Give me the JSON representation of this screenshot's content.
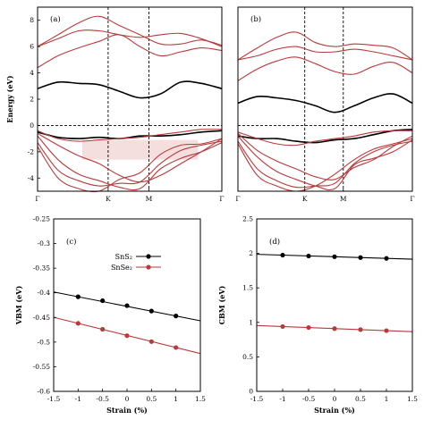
{
  "figure": {
    "colors": {
      "black_series": "#000000",
      "red_series": "#b83a3a",
      "conduction_fill": "#f5dede"
    }
  },
  "chart_data": [
    {
      "type": "line",
      "panel_label": "(a)",
      "ylabel": "Energy (eV)",
      "ylim": [
        -5,
        9
      ],
      "yticks": [
        "-4",
        "-2",
        "0",
        "2",
        "4",
        "6",
        "8"
      ],
      "xticks": [
        "Γ",
        "K",
        "M",
        "Γ"
      ],
      "fermi_level": 0,
      "series": [
        {
          "style": "red",
          "values": [
            6.0,
            6.9,
            7.8,
            8.3,
            7.6,
            6.9,
            6.2,
            6.2,
            6.5,
            6.1
          ]
        },
        {
          "style": "red",
          "values": [
            6.0,
            6.6,
            7.2,
            7.2,
            6.9,
            6.7,
            6.9,
            7.0,
            6.6,
            6.0
          ]
        },
        {
          "style": "red",
          "values": [
            4.4,
            5.3,
            5.9,
            6.4,
            6.9,
            6.0,
            5.3,
            5.6,
            5.9,
            5.7
          ]
        },
        {
          "style": "black",
          "values": [
            2.8,
            3.3,
            3.2,
            3.1,
            2.6,
            2.1,
            2.4,
            3.3,
            3.2,
            2.8
          ]
        },
        {
          "style": "black",
          "values": [
            -0.5,
            -0.9,
            -1.0,
            -0.9,
            -1.0,
            -0.8,
            -0.8,
            -0.7,
            -0.5,
            -0.4
          ]
        },
        {
          "style": "red",
          "values": [
            -0.4,
            -1.0,
            -1.2,
            -1.1,
            -1.0,
            -0.9,
            -0.7,
            -0.5,
            -0.3,
            -0.3
          ]
        },
        {
          "style": "red",
          "values": [
            -0.6,
            -1.5,
            -2.3,
            -2.9,
            -3.8,
            -4.3,
            -3.8,
            -2.9,
            -2.0,
            -1.0
          ]
        },
        {
          "style": "red",
          "values": [
            -0.8,
            -2.6,
            -3.7,
            -4.2,
            -4.7,
            -4.8,
            -3.3,
            -2.5,
            -2.0,
            -1.3
          ]
        },
        {
          "style": "red",
          "values": [
            -1.3,
            -3.4,
            -4.2,
            -4.6,
            -4.4,
            -4.3,
            -2.9,
            -1.9,
            -1.5,
            -1.2
          ]
        },
        {
          "style": "red",
          "values": [
            -1.6,
            -4.0,
            -4.8,
            -5.0,
            -4.1,
            -3.6,
            -2.2,
            -1.5,
            -1.4,
            -1.0
          ]
        }
      ]
    },
    {
      "type": "line",
      "panel_label": "(b)",
      "ylim": [
        -5,
        9
      ],
      "xticks": [
        "Γ",
        "K",
        "M",
        "Γ"
      ],
      "fermi_level": 0,
      "series": [
        {
          "style": "red",
          "values": [
            5.0,
            5.9,
            6.7,
            7.1,
            6.3,
            6.0,
            6.2,
            6.1,
            5.9,
            5.0
          ]
        },
        {
          "style": "red",
          "values": [
            5.0,
            5.3,
            5.8,
            6.0,
            5.6,
            5.6,
            5.8,
            5.6,
            5.3,
            5.0
          ]
        },
        {
          "style": "red",
          "values": [
            3.4,
            4.3,
            4.9,
            5.2,
            4.7,
            4.1,
            3.9,
            4.5,
            4.8,
            4.0
          ]
        },
        {
          "style": "black",
          "values": [
            1.7,
            2.2,
            2.1,
            1.9,
            1.5,
            1.0,
            1.5,
            2.1,
            2.4,
            1.7
          ]
        },
        {
          "style": "black",
          "values": [
            -0.8,
            -1.0,
            -1.0,
            -1.2,
            -1.3,
            -1.1,
            -1.0,
            -0.7,
            -0.4,
            -0.3
          ]
        },
        {
          "style": "red",
          "values": [
            -0.5,
            -1.0,
            -1.4,
            -1.5,
            -1.2,
            -1.0,
            -0.8,
            -0.5,
            -0.4,
            -0.4
          ]
        },
        {
          "style": "red",
          "values": [
            -0.6,
            -1.9,
            -2.7,
            -3.3,
            -3.9,
            -4.1,
            -3.2,
            -2.6,
            -1.6,
            -0.8
          ]
        },
        {
          "style": "red",
          "values": [
            -0.8,
            -2.4,
            -3.5,
            -4.1,
            -4.6,
            -4.8,
            -3.0,
            -2.5,
            -2.0,
            -1.1
          ]
        },
        {
          "style": "red",
          "values": [
            -1.2,
            -3.3,
            -4.2,
            -4.7,
            -4.6,
            -4.4,
            -2.9,
            -2.0,
            -1.5,
            -1.2
          ]
        },
        {
          "style": "red",
          "values": [
            -1.4,
            -3.8,
            -4.6,
            -5.0,
            -4.6,
            -3.7,
            -2.6,
            -1.8,
            -1.4,
            -1.0
          ]
        }
      ]
    },
    {
      "type": "line",
      "panel_label": "(c)",
      "xlabel": "Strain (%)",
      "ylabel": "VBM (eV)",
      "xlim": [
        -1.5,
        1.5
      ],
      "ylim": [
        -0.6,
        -0.25
      ],
      "xticks": [
        "-1.5",
        "-1",
        "-0.5",
        "0",
        "0.5",
        "1",
        "1.5"
      ],
      "yticks": [
        "-0.6",
        "-0.55",
        "-0.5",
        "-0.45",
        "-0.4",
        "-0.35",
        "-0.3",
        "-0.25"
      ],
      "x": [
        -1,
        -0.5,
        0,
        0.5,
        1
      ],
      "series": [
        {
          "name": "SnS₂",
          "style": "black",
          "values": [
            -0.408,
            -0.416,
            -0.426,
            -0.437,
            -0.447
          ]
        },
        {
          "name": "SnSe₂",
          "style": "red",
          "values": [
            -0.462,
            -0.474,
            -0.487,
            -0.499,
            -0.511
          ]
        }
      ]
    },
    {
      "type": "line",
      "panel_label": "(d)",
      "xlabel": "Strain (%)",
      "ylabel": "CBM (eV)",
      "xlim": [
        -1.5,
        1.5
      ],
      "ylim": [
        0,
        2.5
      ],
      "xticks": [
        "-1.5",
        "-1",
        "-0.5",
        "0",
        "0.5",
        "1",
        "1.5"
      ],
      "yticks": [
        "0",
        "0.5",
        "1",
        "1.5",
        "2",
        "2.5"
      ],
      "x": [
        -1,
        -0.5,
        0,
        0.5,
        1
      ],
      "series": [
        {
          "name": "SnS₂",
          "style": "black",
          "values": [
            1.975,
            1.962,
            1.952,
            1.94,
            1.928
          ]
        },
        {
          "name": "SnSe₂",
          "style": "red",
          "values": [
            0.94,
            0.925,
            0.91,
            0.895,
            0.88
          ]
        }
      ]
    }
  ]
}
